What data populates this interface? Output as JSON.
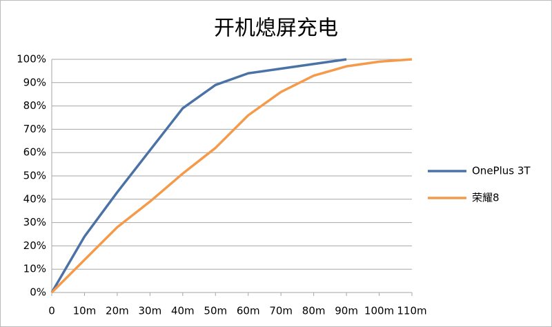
{
  "chart_data": {
    "type": "line",
    "title": "开机熄屏充电",
    "categories": [
      "0",
      "10m",
      "20m",
      "30m",
      "40m",
      "50m",
      "60m",
      "70m",
      "80m",
      "90m",
      "100m",
      "110m"
    ],
    "series": [
      {
        "name": "OnePlus 3T",
        "color": "#4a72a6",
        "values": [
          0,
          24,
          43,
          61,
          79,
          89,
          94,
          96,
          98,
          100,
          null,
          null
        ]
      },
      {
        "name": "荣耀8",
        "color": "#f49a4a",
        "values": [
          0,
          14,
          28,
          39,
          51,
          62,
          76,
          86,
          93,
          97,
          99,
          100
        ]
      }
    ],
    "ylim": [
      0,
      100
    ],
    "yticks": [
      {
        "value": 0,
        "label": "0%"
      },
      {
        "value": 10,
        "label": "10%"
      },
      {
        "value": 20,
        "label": "20%"
      },
      {
        "value": 30,
        "label": "30%"
      },
      {
        "value": 40,
        "label": "40%"
      },
      {
        "value": 50,
        "label": "50%"
      },
      {
        "value": 60,
        "label": "60%"
      },
      {
        "value": 70,
        "label": "70%"
      },
      {
        "value": 80,
        "label": "80%"
      },
      {
        "value": 90,
        "label": "90%"
      },
      {
        "value": 100,
        "label": "100%"
      }
    ],
    "grid": true,
    "legend": "right"
  }
}
